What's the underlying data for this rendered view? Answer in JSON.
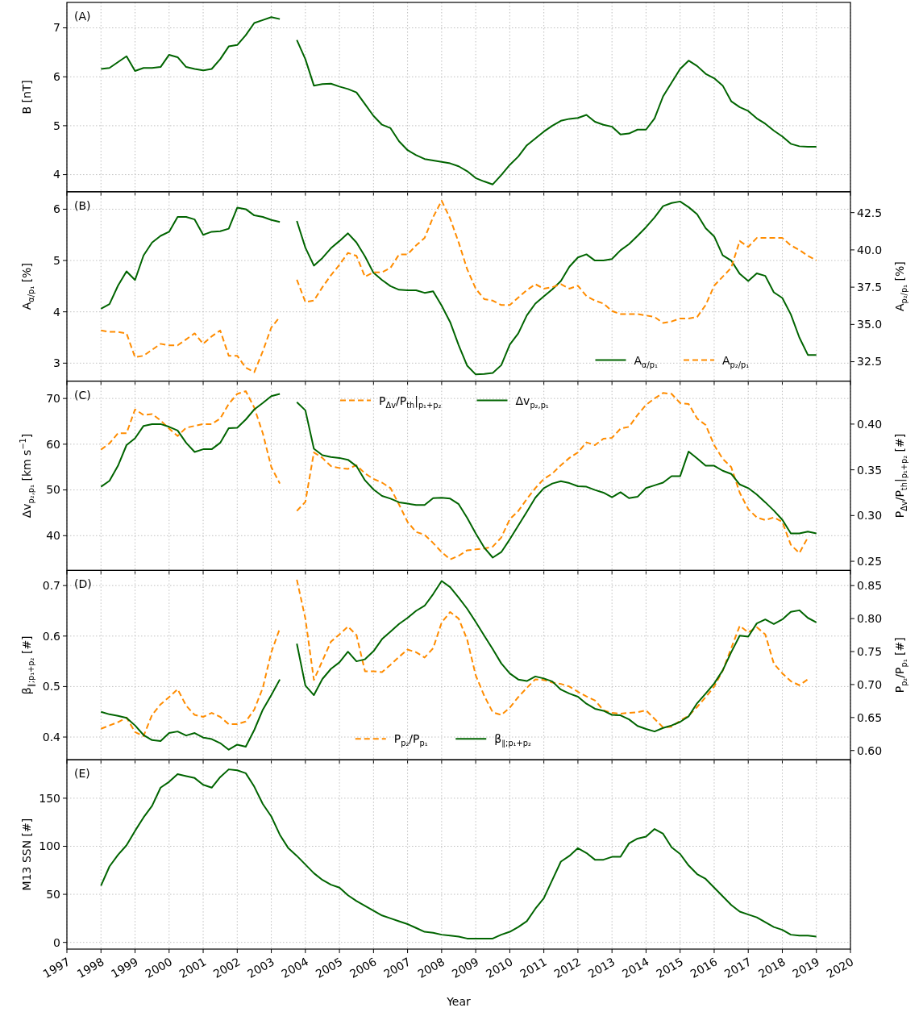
{
  "chart_data": [
    {
      "type": "line",
      "ylabel": "B [nT]",
      "annotations": [
        "(A)"
      ],
      "xlim": [
        1997,
        2020
      ],
      "xticks": [
        1997,
        1998,
        1999,
        2000,
        2001,
        2002,
        2003,
        2004,
        2005,
        2006,
        2007,
        2008,
        2009,
        2010,
        2011,
        2012,
        2013,
        2014,
        2015,
        2016,
        2017,
        2018,
        2019,
        2020
      ],
      "ylim": [
        3.65,
        7.52
      ],
      "yticks": [
        4,
        5,
        6,
        7
      ],
      "grid": true,
      "tick_labels": "y",
      "x": [
        1998,
        1998.25,
        1998.5,
        1998.75,
        1999,
        1999.25,
        1999.5,
        1999.75,
        2000,
        2000.25,
        2000.5,
        2000.75,
        2001,
        2001.25,
        2001.5,
        2001.75,
        2002,
        2002.25,
        2002.5,
        2002.75,
        2003,
        2003.25,
        2003.5,
        2003.75,
        2004,
        2004.25,
        2004.5,
        2004.75,
        2005,
        2005.25,
        2005.5,
        2005.75,
        2006,
        2006.25,
        2006.5,
        2006.75,
        2007,
        2007.25,
        2007.5,
        2007.75,
        2008,
        2008.25,
        2008.5,
        2008.75,
        2009,
        2009.25,
        2009.5,
        2009.75,
        2010,
        2010.25,
        2010.5,
        2010.75,
        2011,
        2011.25,
        2011.5,
        2011.75,
        2012,
        2012.25,
        2012.5,
        2012.75,
        2013,
        2013.25,
        2013.5,
        2013.75,
        2014,
        2014.25,
        2014.5,
        2014.75,
        2015,
        2015.25,
        2015.5,
        2015.75,
        2016,
        2016.25,
        2016.5,
        2016.75,
        2017,
        2017.25,
        2017.5,
        2017.75,
        2018,
        2018.25,
        2018.5,
        2018.75,
        2019
      ],
      "series": [
        {
          "color": "#006400",
          "values": [
            6.16,
            6.18,
            6.3,
            6.42,
            6.12,
            6.18,
            6.18,
            6.2,
            6.45,
            6.4,
            6.2,
            6.16,
            6.13,
            6.16,
            6.36,
            6.62,
            6.65,
            6.85,
            7.1,
            7.16,
            7.22,
            7.18,
            null,
            6.75,
            6.36,
            5.82,
            5.85,
            5.86,
            5.8,
            5.75,
            5.68,
            5.44,
            5.2,
            5.02,
            4.95,
            4.68,
            4.5,
            4.4,
            4.32,
            4.29,
            4.26,
            4.23,
            4.17,
            4.07,
            3.93,
            3.86,
            3.8,
            3.99,
            4.2,
            4.37,
            4.6,
            4.74,
            4.88,
            5.0,
            5.1,
            5.14,
            5.16,
            5.22,
            5.08,
            5.02,
            4.98,
            4.82,
            4.84,
            4.92,
            4.92,
            5.15,
            5.6,
            5.88,
            6.16,
            6.33,
            6.22,
            6.06,
            5.97,
            5.82,
            5.5,
            5.38,
            5.3,
            5.15,
            5.04,
            4.9,
            4.78,
            4.63,
            4.58,
            4.57,
            4.57
          ]
        }
      ]
    },
    {
      "type": "line",
      "ylabel": "A$_{α/p₁}$ [%]",
      "y2label": "A$_{p₂/p₁}$ [%]",
      "annotations": [
        "(B)"
      ],
      "xlim": [
        1997,
        2020
      ],
      "xticks": [
        1997,
        1998,
        1999,
        2000,
        2001,
        2002,
        2003,
        2004,
        2005,
        2006,
        2007,
        2008,
        2009,
        2010,
        2011,
        2012,
        2013,
        2014,
        2015,
        2016,
        2017,
        2018,
        2019,
        2020
      ],
      "ylim": [
        2.65,
        6.34
      ],
      "yticks": [
        3,
        4,
        5,
        6
      ],
      "y2lim": [
        31.2,
        43.9
      ],
      "y2ticks": [
        32.5,
        {
          "value": 35,
          "label": "35.0"
        },
        37.5,
        {
          "value": 40,
          "label": "40.0"
        },
        42.5
      ],
      "grid": true,
      "tick_labels": "y",
      "legend": "bottom right",
      "x": [
        1998,
        1998.25,
        1998.5,
        1998.75,
        1999,
        1999.25,
        1999.5,
        1999.75,
        2000,
        2000.25,
        2000.5,
        2000.75,
        2001,
        2001.25,
        2001.5,
        2001.75,
        2002,
        2002.25,
        2002.5,
        2002.75,
        2003,
        2003.25,
        2003.5,
        2003.75,
        2004,
        2004.25,
        2004.5,
        2004.75,
        2005,
        2005.25,
        2005.5,
        2005.75,
        2006,
        2006.25,
        2006.5,
        2006.75,
        2007,
        2007.25,
        2007.5,
        2007.75,
        2008,
        2008.25,
        2008.5,
        2008.75,
        2009,
        2009.25,
        2009.5,
        2009.75,
        2010,
        2010.25,
        2010.5,
        2010.75,
        2011,
        2011.25,
        2011.5,
        2011.75,
        2012,
        2012.25,
        2012.5,
        2012.75,
        2013,
        2013.25,
        2013.5,
        2013.75,
        2014,
        2014.25,
        2014.5,
        2014.75,
        2015,
        2015.25,
        2015.5,
        2015.75,
        2016,
        2016.25,
        2016.5,
        2016.75,
        2017,
        2017.25,
        2017.5,
        2017.75,
        2018,
        2018.25,
        2018.5,
        2018.75,
        2019
      ],
      "series": [
        {
          "name": "A$_{α/p₁}$",
          "color": "#006400",
          "line_style": "solid",
          "values": [
            4.06,
            4.15,
            4.51,
            4.79,
            4.62,
            5.1,
            5.35,
            5.48,
            5.56,
            5.85,
            5.85,
            5.8,
            5.5,
            5.56,
            5.57,
            5.62,
            6.03,
            6.0,
            5.88,
            5.85,
            5.79,
            5.75,
            null,
            5.77,
            5.25,
            4.9,
            5.05,
            5.24,
            5.38,
            5.53,
            5.35,
            5.08,
            4.76,
            4.62,
            4.5,
            4.43,
            4.42,
            4.42,
            4.37,
            4.4,
            4.12,
            3.8,
            3.35,
            2.95,
            2.78,
            2.79,
            2.81,
            2.96,
            3.36,
            3.58,
            3.93,
            4.16,
            4.3,
            4.44,
            4.6,
            4.88,
            5.06,
            5.12,
            5.0,
            5.0,
            5.03,
            5.2,
            5.32,
            5.48,
            5.65,
            5.84,
            6.06,
            6.12,
            6.15,
            6.04,
            5.9,
            5.63,
            5.47,
            5.1,
            5.0,
            4.74,
            4.6,
            4.75,
            4.7,
            4.38,
            4.27,
            3.95,
            3.5,
            3.16,
            3.16
          ]
        },
        {
          "name": "A$_{p₂/p₁}$",
          "color": "#ff8c00",
          "axis": "y2",
          "line_style": "dashed",
          "values": [
            34.6,
            34.5,
            34.5,
            34.4,
            32.8,
            32.9,
            33.3,
            33.7,
            33.6,
            33.6,
            34.0,
            34.4,
            33.7,
            34.2,
            34.6,
            32.9,
            32.9,
            32.1,
            31.8,
            33.2,
            34.8,
            35.5,
            null,
            38.0,
            36.5,
            36.6,
            37.5,
            38.3,
            39.0,
            39.8,
            39.6,
            38.2,
            38.5,
            38.5,
            38.8,
            39.7,
            39.7,
            40.3,
            40.8,
            42.2,
            43.3,
            42.1,
            40.5,
            38.7,
            37.4,
            36.7,
            36.6,
            36.3,
            36.3,
            36.8,
            37.3,
            37.7,
            37.4,
            37.5,
            37.7,
            37.4,
            37.6,
            36.9,
            36.6,
            36.4,
            35.9,
            35.7,
            35.7,
            35.7,
            35.6,
            35.5,
            35.1,
            35.2,
            35.4,
            35.4,
            35.5,
            36.3,
            37.6,
            38.2,
            38.8,
            40.6,
            40.2,
            40.8,
            40.8,
            40.8,
            40.8,
            40.3,
            40.0,
            39.6,
            39.3
          ]
        }
      ]
    },
    {
      "type": "line",
      "ylabel": "Δv$_{p₂,p₁}$ [km s$^{−1}$]",
      "y2label": "P$_{Δv}$/P$_{th}$|$_{p₁+p₂}$ [#]",
      "annotations": [
        "(C)"
      ],
      "xlim": [
        1997,
        2020
      ],
      "xticks": [
        1997,
        1998,
        1999,
        2000,
        2001,
        2002,
        2003,
        2004,
        2005,
        2006,
        2007,
        2008,
        2009,
        2010,
        2011,
        2012,
        2013,
        2014,
        2015,
        2016,
        2017,
        2018,
        2019,
        2020
      ],
      "ylim": [
        32.4,
        73.8
      ],
      "yticks": [
        40,
        50,
        60,
        70
      ],
      "y2lim": [
        0.24,
        0.447
      ],
      "y2ticks": [
        {
          "value": 0.25,
          "label": "0.25"
        },
        {
          "value": 0.3,
          "label": "0.30"
        },
        {
          "value": 0.35,
          "label": "0.35"
        },
        {
          "value": 0.4,
          "label": "0.40"
        }
      ],
      "grid": true,
      "tick_labels": "y",
      "legend": "top",
      "x": [
        1998,
        1998.25,
        1998.5,
        1998.75,
        1999,
        1999.25,
        1999.5,
        1999.75,
        2000,
        2000.25,
        2000.5,
        2000.75,
        2001,
        2001.25,
        2001.5,
        2001.75,
        2002,
        2002.25,
        2002.5,
        2002.75,
        2003,
        2003.25,
        2003.5,
        2003.75,
        2004,
        2004.25,
        2004.5,
        2004.75,
        2005,
        2005.25,
        2005.5,
        2005.75,
        2006,
        2006.25,
        2006.5,
        2006.75,
        2007,
        2007.25,
        2007.5,
        2007.75,
        2008,
        2008.25,
        2008.5,
        2008.75,
        2009,
        2009.25,
        2009.5,
        2009.75,
        2010,
        2010.25,
        2010.5,
        2010.75,
        2011,
        2011.25,
        2011.5,
        2011.75,
        2012,
        2012.25,
        2012.5,
        2012.75,
        2013,
        2013.25,
        2013.5,
        2013.75,
        2014,
        2014.25,
        2014.5,
        2014.75,
        2015,
        2015.25,
        2015.5,
        2015.75,
        2016,
        2016.25,
        2016.5,
        2016.75,
        2017,
        2017.25,
        2017.5,
        2017.75,
        2018,
        2018.25,
        2018.5,
        2018.75,
        2019
      ],
      "series": [
        {
          "name": "P$_{Δv}$/P$_{th}$|$_{p₁+p₂}$",
          "color": "#ff8c00",
          "axis": "y2",
          "line_style": "dashed",
          "values": [
            0.372,
            0.379,
            0.39,
            0.39,
            0.416,
            0.41,
            0.411,
            0.404,
            0.395,
            0.387,
            0.396,
            0.398,
            0.4,
            0.4,
            0.406,
            0.422,
            0.433,
            0.436,
            0.418,
            0.39,
            0.353,
            0.335,
            null,
            0.305,
            0.315,
            0.369,
            0.363,
            0.354,
            0.352,
            0.351,
            0.355,
            0.346,
            0.34,
            0.336,
            0.33,
            0.312,
            0.293,
            0.282,
            0.279,
            0.27,
            0.26,
            0.252,
            0.256,
            0.262,
            0.263,
            0.264,
            0.266,
            0.276,
            0.296,
            0.305,
            0.318,
            0.33,
            0.34,
            0.346,
            0.355,
            0.363,
            0.369,
            0.38,
            0.377,
            0.384,
            0.385,
            0.395,
            0.397,
            0.41,
            0.421,
            0.428,
            0.434,
            0.433,
            0.423,
            0.422,
            0.406,
            0.399,
            0.377,
            0.362,
            0.353,
            0.325,
            0.307,
            0.298,
            0.295,
            0.298,
            0.293,
            0.268,
            0.259,
            0.276,
            null
          ]
        },
        {
          "name": "Δv$_{p₂,p₁}$",
          "color": "#006400",
          "line_style": "solid",
          "values": [
            50.7,
            52.0,
            55.3,
            59.8,
            61.3,
            64.0,
            64.4,
            64.4,
            63.8,
            63.0,
            60.3,
            58.3,
            58.9,
            58.9,
            60.3,
            63.5,
            63.6,
            65.4,
            67.6,
            69.0,
            70.5,
            71.0,
            null,
            69.2,
            67.4,
            59.0,
            57.6,
            57.2,
            57.0,
            56.6,
            55.2,
            52.1,
            50.1,
            48.7,
            48.1,
            47.3,
            47.0,
            46.7,
            46.7,
            48.2,
            48.3,
            48.1,
            46.9,
            43.9,
            40.5,
            37.4,
            35.2,
            36.4,
            39.2,
            42.2,
            45.2,
            48.3,
            50.4,
            51.4,
            51.9,
            51.5,
            50.8,
            50.7,
            50.0,
            49.4,
            48.4,
            49.5,
            48.2,
            48.5,
            50.4,
            51.0,
            51.6,
            53.0,
            53.0,
            58.4,
            56.9,
            55.3,
            55.3,
            54.2,
            53.5,
            51.2,
            50.4,
            49.0,
            47.3,
            45.5,
            43.5,
            40.5,
            40.5,
            40.9,
            40.5
          ]
        }
      ]
    },
    {
      "type": "line",
      "ylabel": "β$_{∥;p₁+p₂}$ [#]",
      "y2label": "P$_{p₂}$/P$_{p₁}$ [#]",
      "annotations": [
        "(D)"
      ],
      "xlim": [
        1997,
        2020
      ],
      "xticks": [
        1997,
        1998,
        1999,
        2000,
        2001,
        2002,
        2003,
        2004,
        2005,
        2006,
        2007,
        2008,
        2009,
        2010,
        2011,
        2012,
        2013,
        2014,
        2015,
        2016,
        2017,
        2018,
        2019,
        2020
      ],
      "ylim": [
        0.355,
        0.73
      ],
      "yticks": [
        0.4,
        0.5,
        0.6,
        0.7
      ],
      "y2lim": [
        0.586,
        0.873
      ],
      "y2ticks": [
        {
          "value": 0.6,
          "label": "0.60"
        },
        {
          "value": 0.65,
          "label": "0.65"
        },
        {
          "value": 0.7,
          "label": "0.70"
        },
        {
          "value": 0.75,
          "label": "0.75"
        },
        {
          "value": 0.8,
          "label": "0.80"
        },
        {
          "value": 0.85,
          "label": "0.85"
        }
      ],
      "grid": true,
      "tick_labels": "y",
      "legend": "bottom",
      "x": [
        1998,
        1998.25,
        1998.5,
        1998.75,
        1999,
        1999.25,
        1999.5,
        1999.75,
        2000,
        2000.25,
        2000.5,
        2000.75,
        2001,
        2001.25,
        2001.5,
        2001.75,
        2002,
        2002.25,
        2002.5,
        2002.75,
        2003,
        2003.25,
        2003.5,
        2003.75,
        2004,
        2004.25,
        2004.5,
        2004.75,
        2005,
        2005.25,
        2005.5,
        2005.75,
        2006,
        2006.25,
        2006.5,
        2006.75,
        2007,
        2007.25,
        2007.5,
        2007.75,
        2008,
        2008.25,
        2008.5,
        2008.75,
        2009,
        2009.25,
        2009.5,
        2009.75,
        2010,
        2010.25,
        2010.5,
        2010.75,
        2011,
        2011.25,
        2011.5,
        2011.75,
        2012,
        2012.25,
        2012.5,
        2012.75,
        2013,
        2013.25,
        2013.5,
        2013.75,
        2014,
        2014.25,
        2014.5,
        2014.75,
        2015,
        2015.25,
        2015.5,
        2015.75,
        2016,
        2016.25,
        2016.5,
        2016.75,
        2017,
        2017.25,
        2017.5,
        2017.75,
        2018,
        2018.25,
        2018.5,
        2018.75,
        2019
      ],
      "series": [
        {
          "name": "P$_{p₂}$/P$_{p₁}$",
          "color": "#ff8c00",
          "axis": "y2",
          "line_style": "dashed",
          "values": [
            0.633,
            0.638,
            0.643,
            0.65,
            0.628,
            0.622,
            0.654,
            0.67,
            0.681,
            0.693,
            0.668,
            0.654,
            0.651,
            0.657,
            0.651,
            0.64,
            0.64,
            0.644,
            0.662,
            0.695,
            0.749,
            0.785,
            null,
            0.859,
            0.8,
            0.707,
            0.736,
            0.765,
            0.776,
            0.788,
            0.775,
            0.72,
            0.72,
            0.719,
            0.73,
            0.742,
            0.753,
            0.749,
            0.741,
            0.755,
            0.794,
            0.81,
            0.8,
            0.768,
            0.714,
            0.683,
            0.658,
            0.654,
            0.665,
            0.681,
            0.695,
            0.708,
            0.707,
            0.703,
            0.701,
            0.697,
            0.689,
            0.682,
            0.676,
            0.661,
            0.657,
            0.656,
            0.657,
            0.658,
            0.661,
            0.648,
            0.635,
            0.636,
            0.645,
            0.653,
            0.666,
            0.681,
            0.697,
            0.721,
            0.755,
            0.789,
            0.779,
            0.787,
            0.776,
            0.732,
            0.717,
            0.705,
            0.699,
            0.708,
            null
          ]
        },
        {
          "name": "β$_{∥;p₁+p₂}$",
          "color": "#006400",
          "line_style": "solid",
          "values": [
            0.45,
            0.445,
            0.442,
            0.438,
            0.423,
            0.404,
            0.394,
            0.392,
            0.408,
            0.411,
            0.403,
            0.408,
            0.399,
            0.396,
            0.388,
            0.375,
            0.385,
            0.381,
            0.414,
            0.454,
            0.483,
            0.514,
            null,
            0.585,
            0.502,
            0.483,
            0.515,
            0.535,
            0.548,
            0.569,
            0.55,
            0.554,
            0.57,
            0.594,
            0.609,
            0.624,
            0.636,
            0.65,
            0.66,
            0.683,
            0.709,
            0.697,
            0.676,
            0.654,
            0.628,
            0.601,
            0.574,
            0.546,
            0.526,
            0.514,
            0.511,
            0.52,
            0.516,
            0.51,
            0.494,
            0.486,
            0.48,
            0.466,
            0.456,
            0.452,
            0.444,
            0.443,
            0.435,
            0.422,
            0.416,
            0.411,
            0.418,
            0.423,
            0.43,
            0.441,
            0.467,
            0.486,
            0.506,
            0.532,
            0.568,
            0.601,
            0.599,
            0.625,
            0.633,
            0.624,
            0.633,
            0.648,
            0.651,
            0.636,
            0.627
          ]
        }
      ]
    },
    {
      "type": "line",
      "xlabel": "Year",
      "ylabel": "M13 SSN [#]",
      "annotations": [
        "(E)"
      ],
      "xlim": [
        1997,
        2020
      ],
      "xticks": [
        1997,
        1998,
        1999,
        2000,
        2001,
        2002,
        2003,
        2004,
        2005,
        2006,
        2007,
        2008,
        2009,
        2010,
        2011,
        2012,
        2013,
        2014,
        2015,
        2016,
        2017,
        2018,
        2019,
        2020
      ],
      "ylim": [
        -7,
        190
      ],
      "yticks": [
        0,
        50,
        100,
        150
      ],
      "grid": true,
      "x": [
        1998,
        1998.25,
        1998.5,
        1998.75,
        1999,
        1999.25,
        1999.5,
        1999.75,
        2000,
        2000.25,
        2000.5,
        2000.75,
        2001,
        2001.25,
        2001.5,
        2001.75,
        2002,
        2002.25,
        2002.5,
        2002.75,
        2003,
        2003.25,
        2003.5,
        2003.75,
        2004,
        2004.25,
        2004.5,
        2004.75,
        2005,
        2005.25,
        2005.5,
        2005.75,
        2006,
        2006.25,
        2006.5,
        2006.75,
        2007,
        2007.25,
        2007.5,
        2007.75,
        2008,
        2008.25,
        2008.5,
        2008.75,
        2009,
        2009.25,
        2009.5,
        2009.75,
        2010,
        2010.25,
        2010.5,
        2010.75,
        2011,
        2011.25,
        2011.5,
        2011.75,
        2012,
        2012.25,
        2012.5,
        2012.75,
        2013,
        2013.25,
        2013.5,
        2013.75,
        2014,
        2014.25,
        2014.5,
        2014.75,
        2015,
        2015.25,
        2015.5,
        2015.75,
        2016,
        2016.25,
        2016.5,
        2016.75,
        2017,
        2017.25,
        2017.5,
        2017.75,
        2018,
        2018.25,
        2018.5,
        2018.75,
        2019
      ],
      "series": [
        {
          "color": "#006400",
          "values": [
            59,
            79,
            91,
            101,
            116,
            130,
            142,
            161,
            167,
            175,
            173,
            171,
            164,
            161,
            172,
            180,
            179,
            176,
            162,
            144,
            131,
            112,
            98,
            90,
            81,
            72,
            65,
            60,
            57,
            49,
            43,
            38,
            33,
            28,
            25,
            22,
            19,
            15,
            11,
            10,
            8,
            7,
            6,
            4,
            4,
            4,
            4,
            8,
            11,
            16,
            22,
            35,
            46,
            65,
            84,
            90,
            98,
            93,
            86,
            86,
            89,
            89,
            103,
            108,
            110,
            118,
            113,
            99,
            92,
            80,
            71,
            66,
            57,
            48,
            39,
            32,
            29,
            26,
            21,
            16,
            13,
            8,
            7,
            7,
            6
          ]
        }
      ]
    }
  ]
}
